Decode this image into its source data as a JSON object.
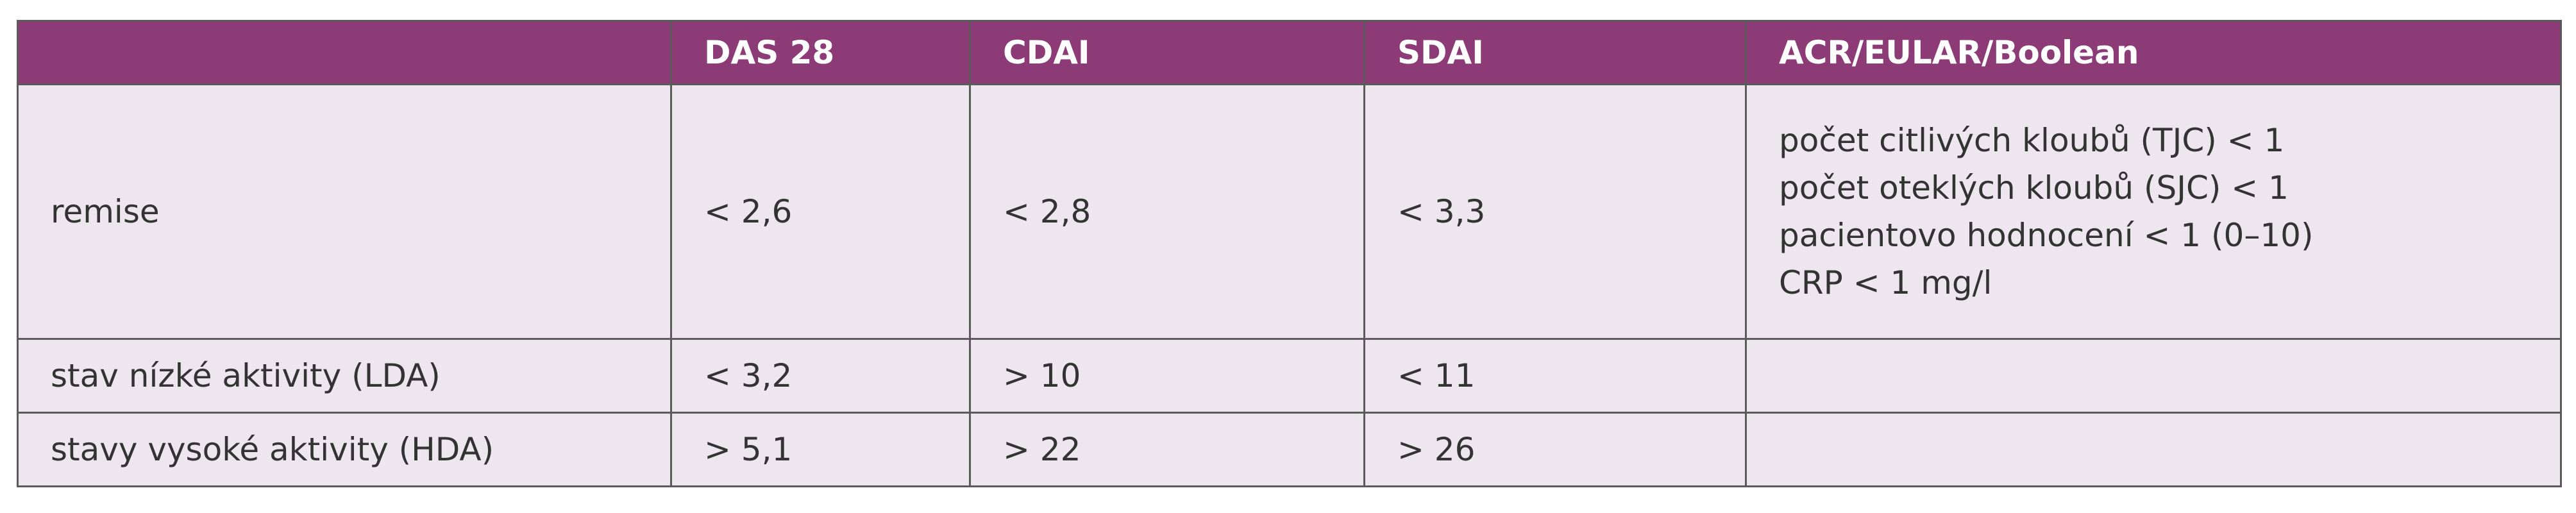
{
  "table": {
    "columns": [
      "DAS 28",
      "CDAI",
      "SDAI",
      "ACR/EULAR/Boolean"
    ],
    "rows": [
      {
        "label": "remise",
        "values": [
          "< 2,6",
          "< 2,8",
          "< 3,3"
        ],
        "notes": [
          "počet citlivých kloubů (TJC) < 1",
          "počet oteklých kloubů (SJC) < 1",
          "pacientovo hodnocení < 1 (0–10)",
          "CRP < 1 mg/l"
        ]
      },
      {
        "label": "stav nízké aktivity (LDA)",
        "values": [
          "< 3,2",
          "> 10",
          "< 11"
        ]
      },
      {
        "label": "stavy vysoké aktivity (HDA)",
        "values": [
          "> 5,1",
          "> 22",
          "> 26"
        ]
      }
    ]
  }
}
